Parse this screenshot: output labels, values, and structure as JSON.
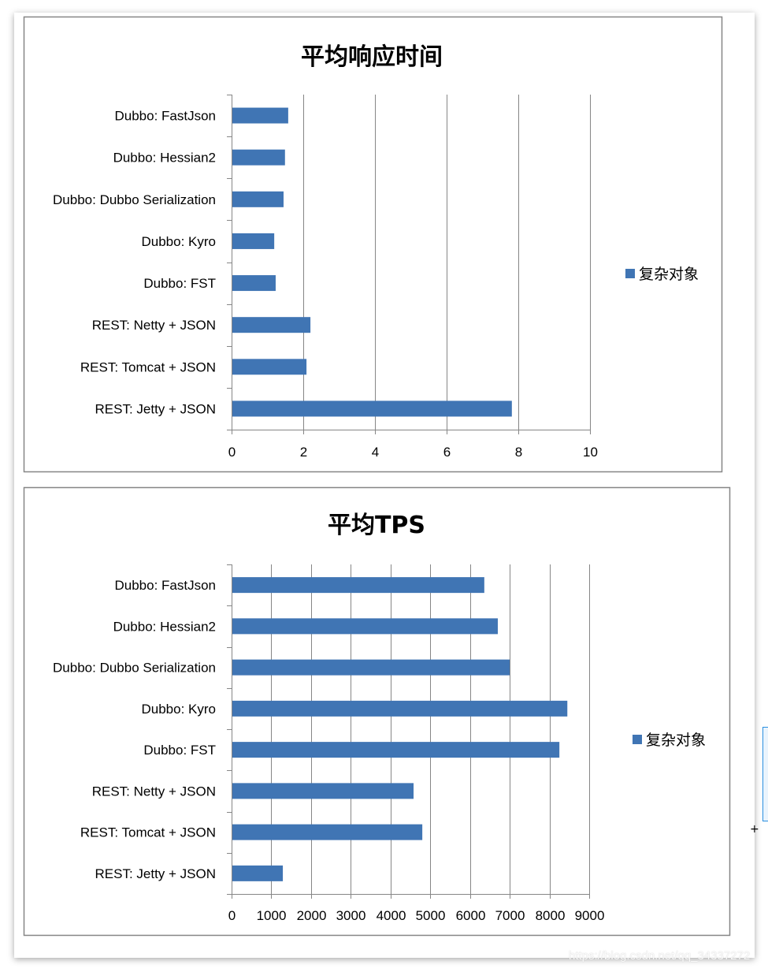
{
  "colors": {
    "bar": "#4075B4",
    "grid": "#868686",
    "frame": "#868686"
  },
  "watermark": "https://blog.csdn.net/qq_34337272",
  "chart_data": [
    {
      "type": "bar",
      "orientation": "horizontal",
      "title": "平均响应时间",
      "categories": [
        "Dubbo: FastJson",
        "Dubbo: Hessian2",
        "Dubbo: Dubbo Serialization",
        "Dubbo: Kyro",
        "Dubbo: FST",
        "REST: Netty + JSON",
        "REST: Tomcat + JSON",
        "REST: Jetty + JSON"
      ],
      "series": [
        {
          "name": "复杂对象",
          "values": [
            1.58,
            1.49,
            1.45,
            1.19,
            1.23,
            2.2,
            2.09,
            7.82
          ]
        }
      ],
      "xlim": [
        0,
        10
      ],
      "xticks": [
        "0",
        "2",
        "4",
        "6",
        "8",
        "10"
      ],
      "grid": true,
      "legend": "right"
    },
    {
      "type": "bar",
      "orientation": "horizontal",
      "title": "平均TPS",
      "categories": [
        "Dubbo: FastJson",
        "Dubbo: Hessian2",
        "Dubbo: Dubbo Serialization",
        "Dubbo: Kyro",
        "Dubbo: FST",
        "REST: Netty + JSON",
        "REST: Tomcat + JSON",
        "REST: Jetty + JSON"
      ],
      "series": [
        {
          "name": "复杂对象",
          "values": [
            6360,
            6700,
            7000,
            8450,
            8250,
            4580,
            4800,
            1290
          ]
        }
      ],
      "xlim": [
        0,
        9000
      ],
      "xticks": [
        "0",
        "1000",
        "2000",
        "3000",
        "4000",
        "5000",
        "6000",
        "7000",
        "8000",
        "9000"
      ],
      "grid": true,
      "legend": "right"
    }
  ]
}
